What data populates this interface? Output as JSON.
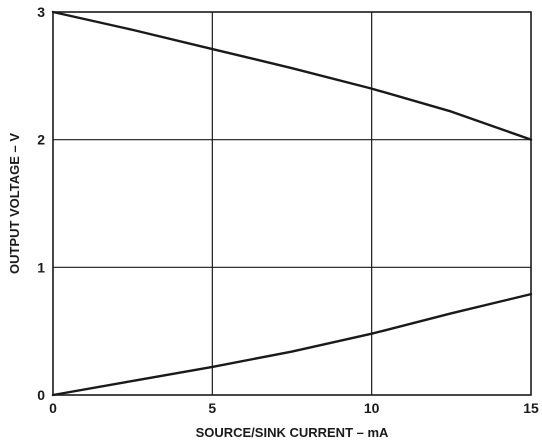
{
  "chart_data": {
    "type": "line",
    "title": "",
    "xlabel": "SOURCE/SINK CURRENT – mA",
    "ylabel": "OUTPUT VOLTAGE – V",
    "xlim": [
      0,
      15
    ],
    "ylim": [
      0,
      3
    ],
    "xticks": [
      0,
      5,
      10,
      15
    ],
    "yticks": [
      0,
      1,
      2,
      3
    ],
    "grid": true,
    "series": [
      {
        "x": [
          0,
          2.5,
          5,
          7.5,
          10,
          12.5,
          15
        ],
        "values": [
          3.0,
          2.86,
          2.71,
          2.56,
          2.4,
          2.22,
          2.0
        ]
      },
      {
        "x": [
          0,
          2.5,
          5,
          7.5,
          10,
          12.5,
          15
        ],
        "values": [
          0.0,
          0.11,
          0.22,
          0.34,
          0.48,
          0.64,
          0.79
        ]
      }
    ],
    "colors": {
      "line": "#1a1a1a",
      "grid": "#1a1a1a",
      "background": "#ffffff"
    }
  }
}
